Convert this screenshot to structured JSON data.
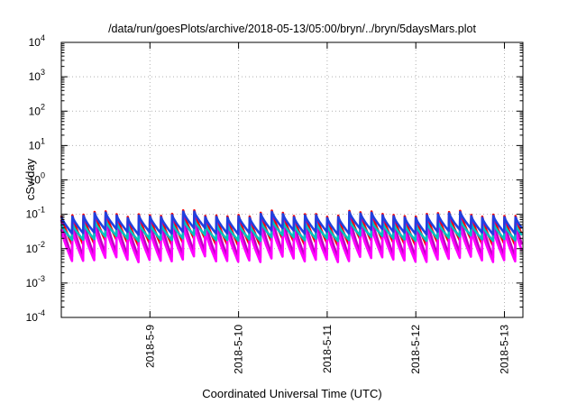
{
  "chart_data": {
    "type": "line",
    "title": "/data/run/goesPlots/archive/2018-05-13/05:00/bryn/../bryn/5daysMars.plot",
    "xlabel": "Coordinated Universal Time (UTC)",
    "ylabel": "cSv/day",
    "y_scale": "log",
    "ylim": [
      "1e-4",
      "1e4"
    ],
    "xlim": [
      "2018-05-08 00:00",
      "2018-05-13 05:00"
    ],
    "y_ticks": [
      {
        "base": "10",
        "exp": "-4"
      },
      {
        "base": "10",
        "exp": "-3"
      },
      {
        "base": "10",
        "exp": "-2"
      },
      {
        "base": "10",
        "exp": "-1"
      },
      {
        "base": "10",
        "exp": "0"
      },
      {
        "base": "10",
        "exp": "1"
      },
      {
        "base": "10",
        "exp": "2"
      },
      {
        "base": "10",
        "exp": "3"
      },
      {
        "base": "10",
        "exp": "4"
      }
    ],
    "x_ticks": [
      "2018-5-9",
      "2018-5-10",
      "2018-5-11",
      "2018-5-12",
      "2018-5-13"
    ],
    "grid": true,
    "legend": "none",
    "pulse_period_hours": 3,
    "series": [
      {
        "color": "#ff0000",
        "peak_envelope": [
          0.13,
          0.06
        ],
        "trough_envelope": [
          0.02,
          0.008
        ]
      },
      {
        "color": "#c000c0",
        "peak_envelope": [
          0.1,
          0.045
        ],
        "trough_envelope": [
          0.008,
          0.004
        ]
      },
      {
        "color": "#ff00ff",
        "peak_envelope": [
          0.05,
          0.025
        ],
        "trough_envelope": [
          0.006,
          0.003
        ]
      },
      {
        "color": "#00c0c0",
        "peak_envelope": [
          0.07,
          0.035
        ],
        "trough_envelope": [
          0.025,
          0.012
        ]
      },
      {
        "color": "#2040e0",
        "peak_envelope": [
          0.12,
          0.055
        ],
        "trough_envelope": [
          0.04,
          0.018
        ]
      }
    ]
  }
}
